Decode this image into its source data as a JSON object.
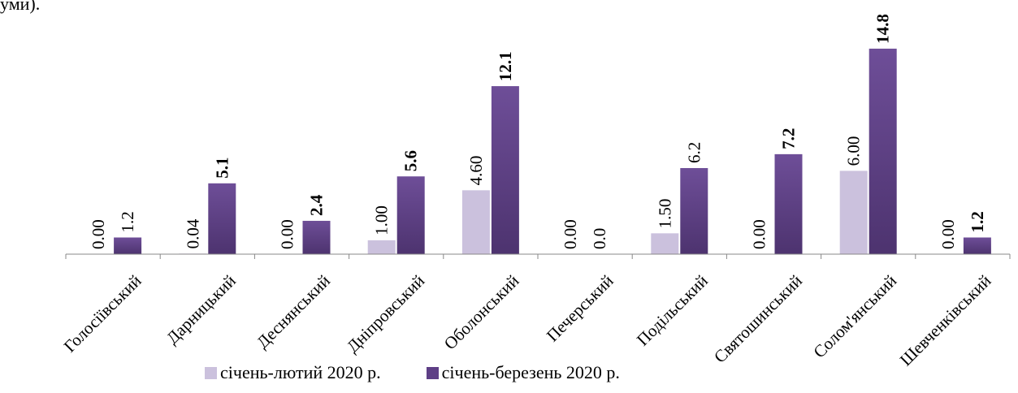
{
  "page": {
    "top_text_fragment": "уми)."
  },
  "chart_data": {
    "type": "bar",
    "categories": [
      "Голосіївський",
      "Дарницький",
      "Деснянський",
      "Дніпровський",
      "Оболонський",
      "Печерський",
      "Подільський",
      "Святошинський",
      "Солом'янський",
      "Шевченківський"
    ],
    "series": [
      {
        "name": "січень-лютий 2020 р.",
        "values": [
          0.0,
          0.04,
          0.0,
          1.0,
          4.6,
          0.0,
          1.5,
          0.0,
          6.0,
          0.0
        ],
        "labels": [
          "0.00",
          "0.04",
          "0.00",
          "1.00",
          "4.60",
          "0.00",
          "1.50",
          "0.00",
          "6.00",
          "0.00"
        ],
        "color": "#cbc1dd"
      },
      {
        "name": "січень-березень 2020 р.",
        "values": [
          1.2,
          5.1,
          2.4,
          5.6,
          12.1,
          0.0,
          6.2,
          7.2,
          14.8,
          1.2
        ],
        "labels": [
          "1.2",
          "5.1",
          "2.4",
          "5.6",
          "12.1",
          "0.0",
          "6.2",
          "7.2",
          "14.8",
          "1.2"
        ],
        "label_bold": [
          false,
          true,
          true,
          true,
          true,
          false,
          false,
          true,
          true,
          true
        ],
        "color": "#5e3f86"
      }
    ],
    "ylim": [
      0,
      16.5
    ],
    "grid": false,
    "legend_position": "bottom",
    "xlabel": "",
    "ylabel": ""
  }
}
